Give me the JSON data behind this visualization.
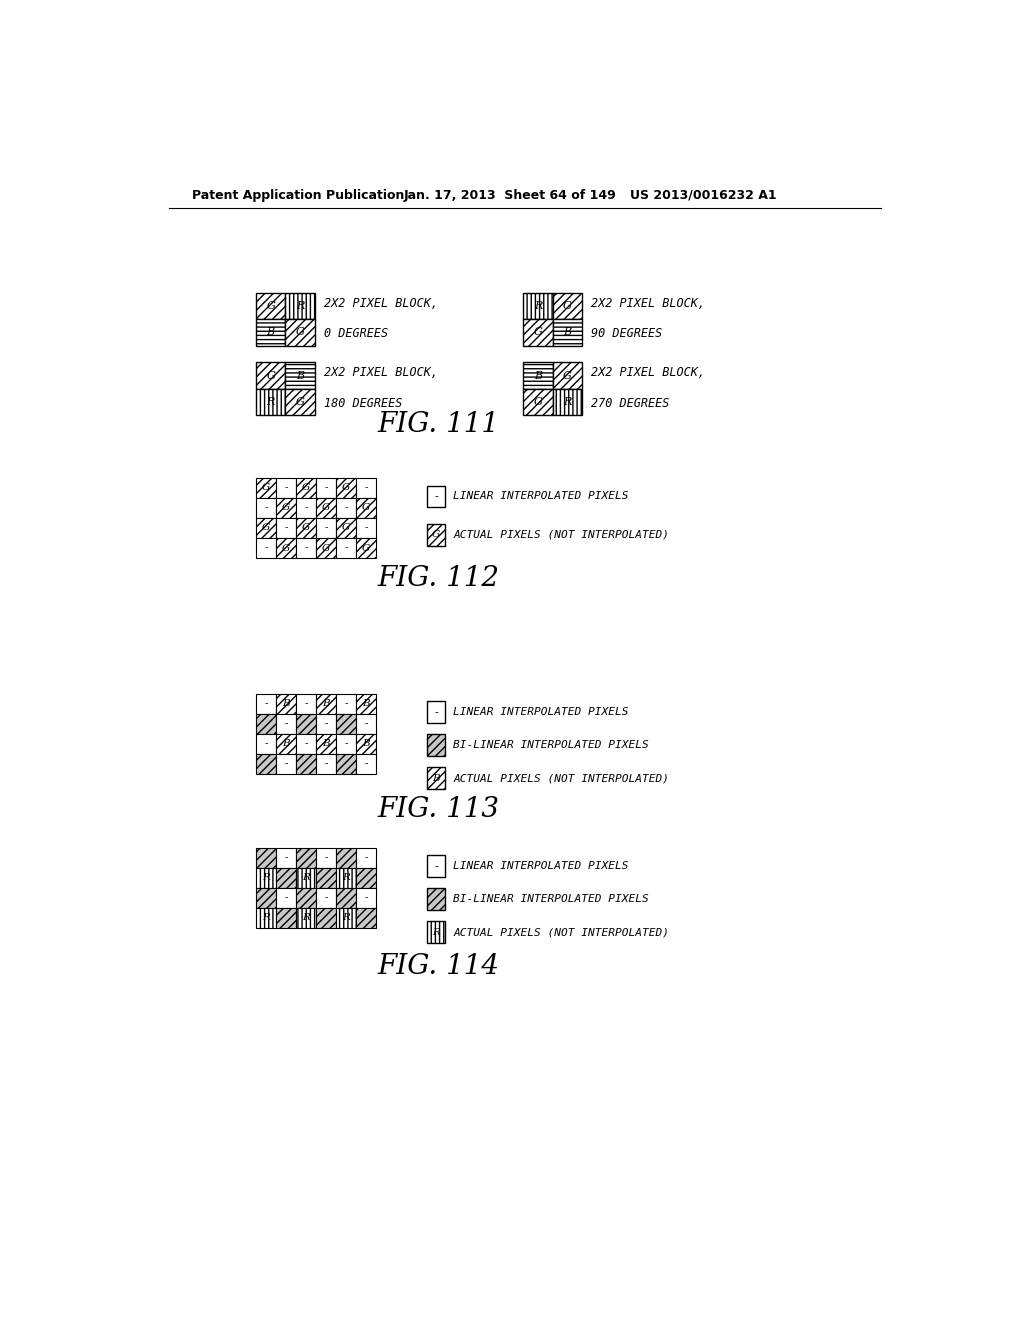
{
  "header_left": "Patent Application Publication",
  "header_mid": "Jan. 17, 2013  Sheet 64 of 149",
  "header_right": "US 2013/0016232 A1",
  "fig111_label": "FIG. 111",
  "fig112_label": "FIG. 112",
  "fig113_label": "FIG. 113",
  "fig114_label": "FIG. 114",
  "bg_color": "#ffffff",
  "fg_color": "#000000"
}
